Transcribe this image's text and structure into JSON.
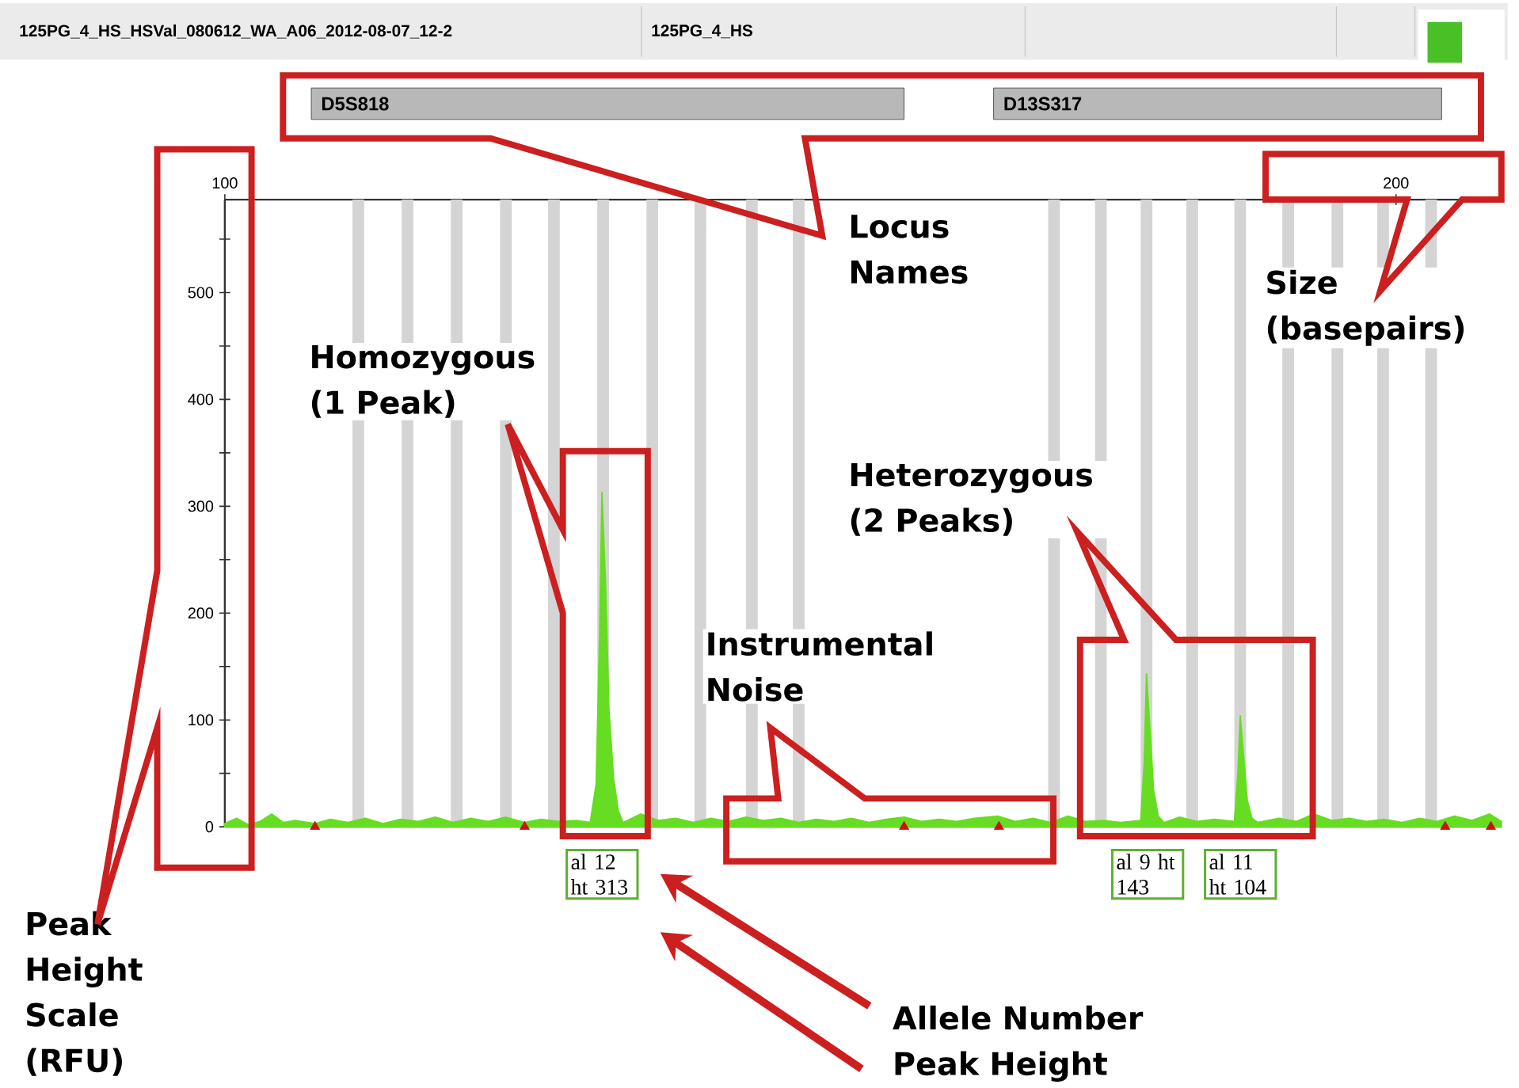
{
  "chart_data": {
    "type": "area",
    "xlim": [
      100,
      209
    ],
    "ylim": [
      0,
      587
    ],
    "xticks": [
      100,
      200
    ],
    "yticks": [
      0,
      {
        "value": 50,
        "label": null
      },
      100,
      {
        "value": 150,
        "label": null
      },
      200,
      {
        "value": 250,
        "label": null
      },
      300,
      {
        "value": 350,
        "label": null
      },
      400,
      {
        "value": 450,
        "label": null
      },
      500,
      {
        "value": 550,
        "label": null
      }
    ],
    "series": [
      {
        "type": "area",
        "color": "#66dd22",
        "x": [
          100,
          101,
          102,
          103,
          104,
          105,
          106,
          107.7,
          109,
          110.5,
          112,
          113.5,
          115,
          116.5,
          118,
          119.5,
          121,
          122.5,
          124,
          125.6,
          127,
          128.5,
          130,
          131.2,
          131.7,
          132.0,
          132.2,
          132.5,
          132.8,
          133.2,
          133.6,
          134,
          135.5,
          137,
          138.5,
          140,
          141.5,
          143,
          144.5,
          146,
          147.5,
          149,
          150.5,
          152,
          153.5,
          155,
          156.5,
          158,
          159.5,
          161,
          162.5,
          164,
          166,
          167.5,
          169,
          170.5,
          172,
          173.5,
          175,
          176.5,
          178.2,
          178.5,
          178.7,
          179.0,
          179.3,
          179.7,
          180.2,
          181.5,
          183,
          184.5,
          186.2,
          186.5,
          186.7,
          187.0,
          187.3,
          187.7,
          188.2,
          190,
          191.5,
          193,
          194.5,
          196,
          197.5,
          199,
          200.5,
          202,
          203.5,
          205,
          206.5,
          208,
          209
        ],
        "values": [
          3,
          8,
          2,
          5,
          12,
          4,
          6,
          3,
          7,
          4,
          8,
          3,
          7,
          5,
          9,
          4,
          8,
          5,
          9,
          4,
          7,
          5,
          6,
          4,
          40,
          180,
          313,
          230,
          110,
          45,
          15,
          4,
          12,
          6,
          8,
          4,
          8,
          5,
          9,
          6,
          8,
          4,
          7,
          5,
          8,
          4,
          7,
          9,
          5,
          7,
          5,
          8,
          10,
          5,
          8,
          4,
          10,
          5,
          6,
          4,
          6,
          60,
          143,
          90,
          35,
          10,
          4,
          9,
          5,
          7,
          5,
          50,
          104,
          65,
          25,
          8,
          4,
          8,
          5,
          12,
          6,
          8,
          5,
          7,
          4,
          8,
          5,
          10,
          6,
          12,
          5
        ]
      },
      {
        "type": "scatter",
        "color": "#cc1111",
        "marker": "triangle",
        "x": [
          107.7,
          125.6,
          158.0,
          166.1,
          204.2,
          208.1
        ],
        "values": [
          0,
          0,
          0,
          0,
          0,
          0
        ]
      }
    ],
    "bands": [
      {
        "axis": "x",
        "from": 110.9,
        "to": 111.9,
        "color": "#d4d4d4"
      },
      {
        "axis": "x",
        "from": 115.1,
        "to": 116.1,
        "color": "#d4d4d4"
      },
      {
        "axis": "x",
        "from": 119.3,
        "to": 120.3,
        "color": "#d4d4d4"
      },
      {
        "axis": "x",
        "from": 123.5,
        "to": 124.5,
        "color": "#d4d4d4"
      },
      {
        "axis": "x",
        "from": 127.6,
        "to": 128.6,
        "color": "#d4d4d4"
      },
      {
        "axis": "x",
        "from": 131.8,
        "to": 132.8,
        "color": "#d4d4d4"
      },
      {
        "axis": "x",
        "from": 136.0,
        "to": 137.0,
        "color": "#d4d4d4"
      },
      {
        "axis": "x",
        "from": 140.1,
        "to": 141.1,
        "color": "#d4d4d4"
      },
      {
        "axis": "x",
        "from": 144.5,
        "to": 145.5,
        "color": "#d4d4d4"
      },
      {
        "axis": "x",
        "from": 148.5,
        "to": 149.5,
        "color": "#d4d4d4"
      },
      {
        "axis": "x",
        "from": 170.3,
        "to": 171.3,
        "color": "#d4d4d4"
      },
      {
        "axis": "x",
        "from": 174.3,
        "to": 175.3,
        "color": "#d4d4d4"
      },
      {
        "axis": "x",
        "from": 178.2,
        "to": 179.2,
        "color": "#d4d4d4"
      },
      {
        "axis": "x",
        "from": 182.1,
        "to": 183.1,
        "color": "#d4d4d4"
      },
      {
        "axis": "x",
        "from": 186.2,
        "to": 187.2,
        "color": "#d4d4d4"
      },
      {
        "axis": "x",
        "from": 190.3,
        "to": 191.3,
        "color": "#d4d4d4"
      },
      {
        "axis": "x",
        "from": 194.5,
        "to": 195.5,
        "color": "#d4d4d4"
      },
      {
        "axis": "x",
        "from": 198.4,
        "to": 199.4,
        "color": "#d4d4d4"
      },
      {
        "axis": "x",
        "from": 202.5,
        "to": 203.5,
        "color": "#d4d4d4"
      }
    ],
    "annotations": [
      "125PG_4_HS_HSVal_080612_WA_A06_2012-08-07_12-2",
      "125PG_4_HS",
      "D5S818",
      "D13S317",
      "Locus Names",
      "Size (basepairs)",
      "Homozygous (1 Peak)",
      "Heterozygous (2 Peaks)",
      "Instrumental Noise",
      "Peak Height Scale (RFU)",
      "Allele Number Peak Height",
      "al 12 ht 313",
      "al 9 ht 143",
      "al 11 ht 104"
    ]
  }
}
